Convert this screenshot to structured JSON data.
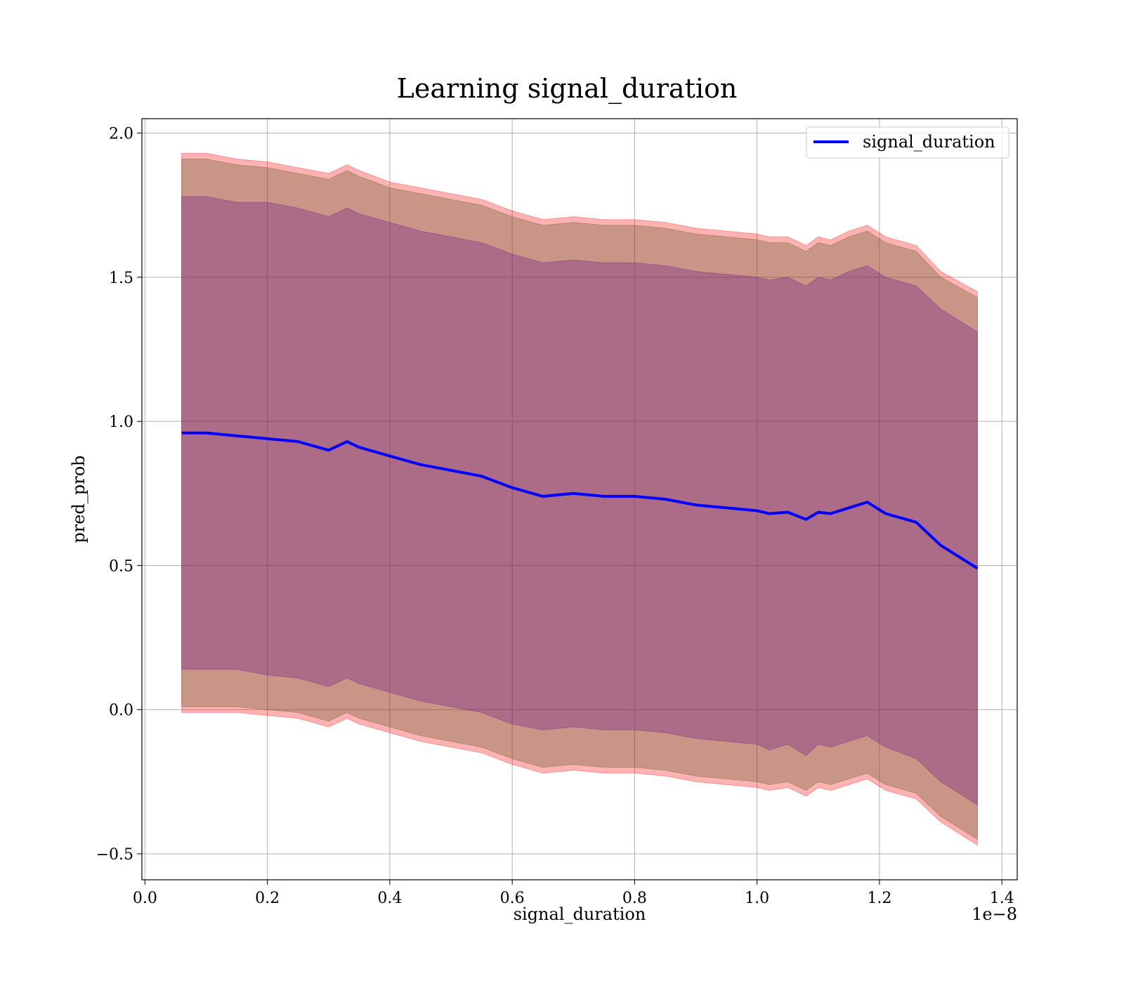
{
  "chart_data": {
    "type": "line",
    "title": "Learning signal_duration",
    "xlabel": "signal_duration",
    "ylabel": "pred_prob",
    "x_offset_label": "1e−8",
    "x_tick_labels": [
      "0.0",
      "0.2",
      "0.4",
      "0.6",
      "0.8",
      "1.0",
      "1.2",
      "1.4"
    ],
    "x_ticks": [
      0.0,
      0.2,
      0.4,
      0.6,
      0.8,
      1.0,
      1.2,
      1.4
    ],
    "y_tick_labels": [
      "−0.5",
      "0.0",
      "0.5",
      "1.0",
      "1.5",
      "2.0"
    ],
    "y_ticks": [
      -0.5,
      0.0,
      0.5,
      1.0,
      1.5,
      2.0
    ],
    "xlim": [
      -0.005,
      1.425
    ],
    "ylim": [
      -0.59,
      2.05
    ],
    "grid": true,
    "legend_position": "top-right",
    "series": [
      {
        "name": "signal_duration",
        "color": "#0000ff",
        "x": [
          0.06,
          0.1,
          0.15,
          0.2,
          0.25,
          0.3,
          0.33,
          0.35,
          0.4,
          0.45,
          0.5,
          0.55,
          0.6,
          0.65,
          0.7,
          0.75,
          0.8,
          0.85,
          0.9,
          0.95,
          1.0,
          1.02,
          1.05,
          1.08,
          1.1,
          1.12,
          1.15,
          1.18,
          1.21,
          1.26,
          1.3,
          1.36
        ],
        "y": [
          0.96,
          0.96,
          0.95,
          0.94,
          0.93,
          0.9,
          0.93,
          0.91,
          0.88,
          0.85,
          0.83,
          0.81,
          0.77,
          0.74,
          0.75,
          0.74,
          0.74,
          0.73,
          0.71,
          0.7,
          0.69,
          0.68,
          0.685,
          0.66,
          0.685,
          0.68,
          0.7,
          0.72,
          0.68,
          0.65,
          0.57,
          0.49
        ]
      }
    ],
    "bands": [
      {
        "color": "#ff0000",
        "opacity": 0.3,
        "x": [
          0.06,
          0.1,
          0.15,
          0.2,
          0.25,
          0.3,
          0.33,
          0.35,
          0.4,
          0.45,
          0.5,
          0.55,
          0.6,
          0.65,
          0.7,
          0.75,
          0.8,
          0.85,
          0.9,
          0.95,
          1.0,
          1.02,
          1.05,
          1.08,
          1.1,
          1.12,
          1.15,
          1.18,
          1.21,
          1.26,
          1.3,
          1.36
        ],
        "upper": [
          1.93,
          1.93,
          1.91,
          1.9,
          1.88,
          1.86,
          1.89,
          1.87,
          1.83,
          1.81,
          1.79,
          1.77,
          1.73,
          1.7,
          1.71,
          1.7,
          1.7,
          1.69,
          1.67,
          1.66,
          1.65,
          1.64,
          1.64,
          1.61,
          1.64,
          1.63,
          1.66,
          1.68,
          1.64,
          1.61,
          1.52,
          1.45
        ],
        "lower": [
          -0.01,
          -0.01,
          -0.01,
          -0.02,
          -0.03,
          -0.06,
          -0.03,
          -0.05,
          -0.08,
          -0.11,
          -0.13,
          -0.15,
          -0.19,
          -0.22,
          -0.21,
          -0.22,
          -0.22,
          -0.23,
          -0.25,
          -0.26,
          -0.27,
          -0.28,
          -0.27,
          -0.3,
          -0.27,
          -0.28,
          -0.26,
          -0.24,
          -0.28,
          -0.31,
          -0.39,
          -0.47
        ]
      },
      {
        "color": "#4b5320",
        "opacity": 0.3,
        "x": [
          0.06,
          0.1,
          0.15,
          0.2,
          0.25,
          0.3,
          0.33,
          0.35,
          0.4,
          0.45,
          0.5,
          0.55,
          0.6,
          0.65,
          0.7,
          0.75,
          0.8,
          0.85,
          0.9,
          0.95,
          1.0,
          1.02,
          1.05,
          1.08,
          1.1,
          1.12,
          1.15,
          1.18,
          1.21,
          1.26,
          1.3,
          1.36
        ],
        "upper": [
          1.91,
          1.91,
          1.89,
          1.88,
          1.86,
          1.84,
          1.87,
          1.85,
          1.81,
          1.79,
          1.77,
          1.75,
          1.71,
          1.68,
          1.69,
          1.68,
          1.68,
          1.67,
          1.65,
          1.64,
          1.63,
          1.62,
          1.62,
          1.59,
          1.62,
          1.61,
          1.64,
          1.66,
          1.62,
          1.59,
          1.5,
          1.43
        ],
        "lower": [
          0.01,
          0.01,
          0.01,
          0.0,
          -0.01,
          -0.04,
          -0.01,
          -0.03,
          -0.06,
          -0.09,
          -0.11,
          -0.13,
          -0.17,
          -0.2,
          -0.19,
          -0.2,
          -0.2,
          -0.21,
          -0.23,
          -0.24,
          -0.25,
          -0.26,
          -0.25,
          -0.28,
          -0.25,
          -0.26,
          -0.24,
          -0.22,
          -0.26,
          -0.29,
          -0.37,
          -0.45
        ]
      },
      {
        "color": "#6a0d8b",
        "opacity": 0.3,
        "x": [
          0.06,
          0.1,
          0.15,
          0.2,
          0.25,
          0.3,
          0.33,
          0.35,
          0.4,
          0.45,
          0.5,
          0.55,
          0.6,
          0.65,
          0.7,
          0.75,
          0.8,
          0.85,
          0.9,
          0.95,
          1.0,
          1.02,
          1.05,
          1.08,
          1.1,
          1.12,
          1.15,
          1.18,
          1.21,
          1.26,
          1.3,
          1.36
        ],
        "upper": [
          1.78,
          1.78,
          1.76,
          1.76,
          1.74,
          1.71,
          1.74,
          1.72,
          1.69,
          1.66,
          1.64,
          1.62,
          1.58,
          1.55,
          1.56,
          1.55,
          1.55,
          1.54,
          1.52,
          1.51,
          1.5,
          1.49,
          1.5,
          1.47,
          1.5,
          1.49,
          1.52,
          1.54,
          1.5,
          1.47,
          1.39,
          1.31
        ],
        "lower": [
          0.14,
          0.14,
          0.14,
          0.12,
          0.11,
          0.08,
          0.11,
          0.09,
          0.06,
          0.03,
          0.01,
          -0.01,
          -0.05,
          -0.07,
          -0.06,
          -0.07,
          -0.07,
          -0.08,
          -0.1,
          -0.11,
          -0.12,
          -0.14,
          -0.12,
          -0.16,
          -0.12,
          -0.13,
          -0.11,
          -0.09,
          -0.13,
          -0.17,
          -0.25,
          -0.33
        ]
      }
    ]
  }
}
